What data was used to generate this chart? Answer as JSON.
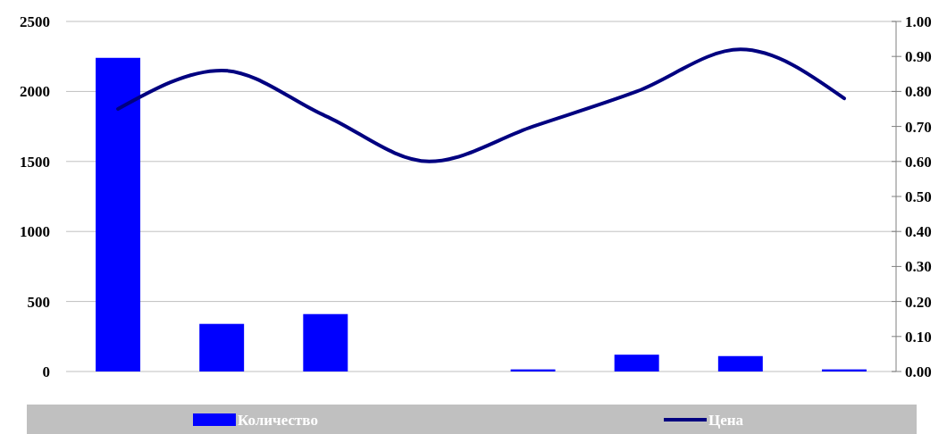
{
  "chart_data": {
    "type": "bar",
    "categories": [
      null,
      null,
      null,
      null,
      null,
      null,
      null,
      null
    ],
    "series": [
      {
        "name": "Количество",
        "color": "#0000ff",
        "values": [
          2240,
          340,
          410,
          0,
          15,
          120,
          110,
          15
        ]
      },
      {
        "name": "Цена",
        "type": "line",
        "axis": "y2",
        "color": "#000080",
        "values": [
          0.75,
          0.86,
          0.73,
          0.6,
          0.7,
          0.8,
          0.92,
          0.78
        ]
      }
    ],
    "ylim": [
      0,
      2500
    ],
    "yticks": [
      0,
      500,
      1000,
      1500,
      2000,
      2500
    ],
    "y2lim": [
      0,
      1
    ],
    "y2ticks": [
      {
        "value": 0,
        "label": "0.00"
      },
      {
        "value": 0.1,
        "label": "0.10"
      },
      {
        "value": 0.2,
        "label": "0.20"
      },
      {
        "value": 0.3,
        "label": "0.30"
      },
      {
        "value": 0.4,
        "label": "0.40"
      },
      {
        "value": 0.5,
        "label": "0.50"
      },
      {
        "value": 0.6,
        "label": "0.60"
      },
      {
        "value": 0.7,
        "label": "0.70"
      },
      {
        "value": 0.8,
        "label": "0.80"
      },
      {
        "value": 0.9,
        "label": "0.90"
      },
      {
        "value": 1,
        "label": "1.00"
      }
    ],
    "grid": "y",
    "legend": "bottom"
  }
}
